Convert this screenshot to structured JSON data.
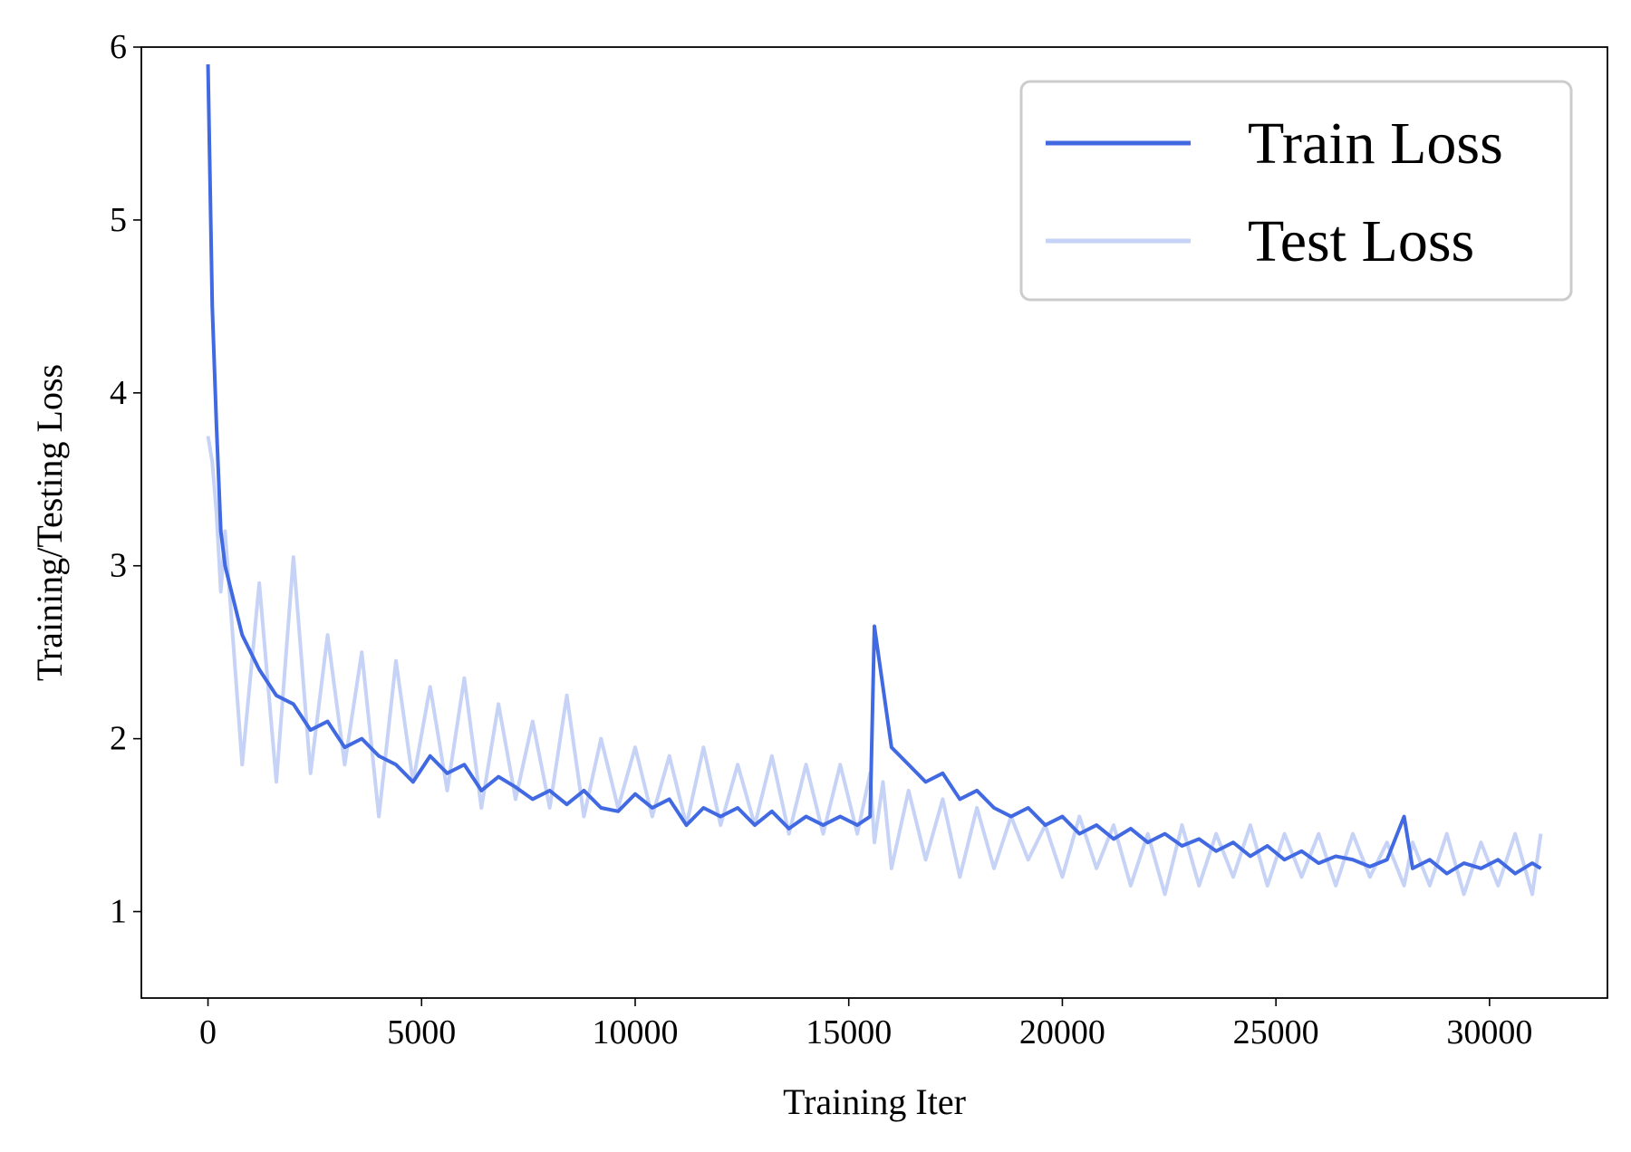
{
  "chart_data": {
    "type": "line",
    "xlabel": "Training Iter",
    "ylabel": "Training/Testing Loss",
    "x": [
      0,
      100,
      200,
      300,
      400,
      800,
      1200,
      1600,
      2000,
      2400,
      2800,
      3200,
      3600,
      4000,
      4400,
      4800,
      5200,
      5600,
      6000,
      6400,
      6800,
      7200,
      7600,
      8000,
      8400,
      8800,
      9200,
      9600,
      10000,
      10400,
      10800,
      11200,
      11600,
      12000,
      12400,
      12800,
      13200,
      13600,
      14000,
      14400,
      14800,
      15200,
      15500,
      15600,
      15800,
      16000,
      16400,
      16800,
      17200,
      17600,
      18000,
      18400,
      18800,
      19200,
      19600,
      20000,
      20400,
      20800,
      21200,
      21600,
      22000,
      22400,
      22800,
      23200,
      23600,
      24000,
      24400,
      24800,
      25200,
      25600,
      26000,
      26400,
      26800,
      27200,
      27600,
      28000,
      28200,
      28600,
      29000,
      29400,
      29800,
      30200,
      30600,
      31000,
      31200
    ],
    "series": [
      {
        "name": "Train Loss",
        "color": "#4169e1",
        "values": [
          5.9,
          4.5,
          3.8,
          3.2,
          3.0,
          2.6,
          2.4,
          2.25,
          2.2,
          2.05,
          2.1,
          1.95,
          2.0,
          1.9,
          1.85,
          1.75,
          1.9,
          1.8,
          1.85,
          1.7,
          1.78,
          1.72,
          1.65,
          1.7,
          1.62,
          1.7,
          1.6,
          1.58,
          1.68,
          1.6,
          1.65,
          1.5,
          1.6,
          1.55,
          1.6,
          1.5,
          1.58,
          1.48,
          1.55,
          1.5,
          1.55,
          1.5,
          1.55,
          2.65,
          2.3,
          1.95,
          1.85,
          1.75,
          1.8,
          1.65,
          1.7,
          1.6,
          1.55,
          1.6,
          1.5,
          1.55,
          1.45,
          1.5,
          1.42,
          1.48,
          1.4,
          1.45,
          1.38,
          1.42,
          1.35,
          1.4,
          1.32,
          1.38,
          1.3,
          1.35,
          1.28,
          1.32,
          1.3,
          1.26,
          1.3,
          1.55,
          1.25,
          1.3,
          1.22,
          1.28,
          1.25,
          1.3,
          1.22,
          1.28,
          1.25
        ]
      },
      {
        "name": "Test Loss",
        "color": "#c6d3f6",
        "values": [
          3.75,
          3.6,
          3.3,
          2.85,
          3.2,
          1.85,
          2.9,
          1.75,
          3.05,
          1.8,
          2.6,
          1.85,
          2.5,
          1.55,
          2.45,
          1.75,
          2.3,
          1.7,
          2.35,
          1.6,
          2.2,
          1.65,
          2.1,
          1.6,
          2.25,
          1.55,
          2.0,
          1.6,
          1.95,
          1.55,
          1.9,
          1.5,
          1.95,
          1.5,
          1.85,
          1.5,
          1.9,
          1.45,
          1.85,
          1.45,
          1.85,
          1.45,
          1.8,
          1.4,
          1.75,
          1.25,
          1.7,
          1.3,
          1.65,
          1.2,
          1.6,
          1.25,
          1.55,
          1.3,
          1.5,
          1.2,
          1.55,
          1.25,
          1.5,
          1.15,
          1.45,
          1.1,
          1.5,
          1.15,
          1.45,
          1.2,
          1.5,
          1.15,
          1.45,
          1.2,
          1.45,
          1.15,
          1.45,
          1.2,
          1.4,
          1.15,
          1.4,
          1.15,
          1.45,
          1.1,
          1.4,
          1.15,
          1.45,
          1.1,
          1.45
        ]
      }
    ],
    "xlim": [
      -1560,
      32760
    ],
    "ylim": [
      0.5,
      6
    ],
    "xticks": [
      0,
      5000,
      10000,
      15000,
      20000,
      25000,
      30000
    ],
    "yticks": [
      1,
      2,
      3,
      4,
      5,
      6
    ],
    "grid": false,
    "legend": "upper right"
  }
}
